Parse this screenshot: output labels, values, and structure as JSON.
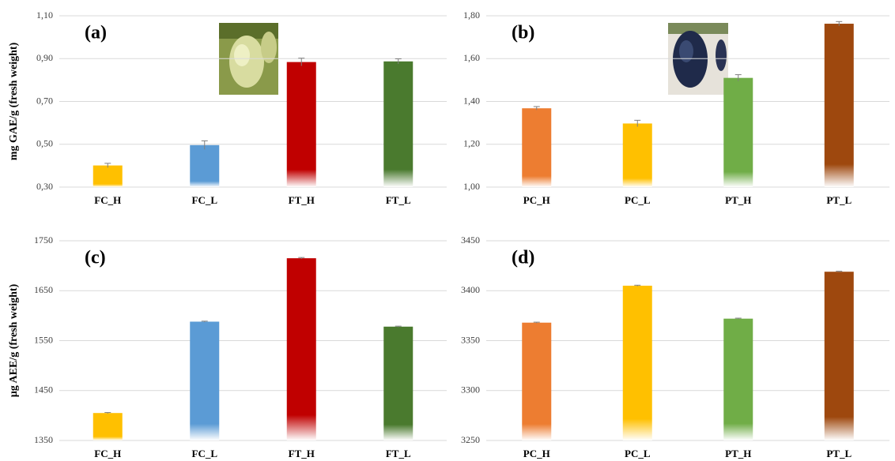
{
  "chart_data": [
    {
      "type": "bar",
      "title": "(a)",
      "y_label": "mg GAE/g (fresh weight)",
      "categories": [
        "FC_H",
        "FC_L",
        "FT_H",
        "FT_L"
      ],
      "values": [
        0.401,
        0.496,
        0.884,
        0.887
      ],
      "errors": [
        0.01,
        0.02,
        0.018,
        0.012
      ],
      "colors": [
        "#ffc000",
        "#5b9bd5",
        "#c00000",
        "#4a7a2e"
      ],
      "ylim": [
        0.3,
        1.1
      ],
      "yticks": [
        {
          "value": 0.3,
          "label": "0,30"
        },
        {
          "value": 0.5,
          "label": "0,50"
        },
        {
          "value": 0.7,
          "label": "0,70"
        },
        {
          "value": 0.9,
          "label": "0,90"
        },
        {
          "value": 1.1,
          "label": "1,10"
        }
      ],
      "grid": true
    },
    {
      "type": "bar",
      "title": "(b)",
      "categories": [
        "PC_H",
        "PC_L",
        "PT_H",
        "PT_L"
      ],
      "values": [
        1.368,
        1.297,
        1.51,
        1.763
      ],
      "errors": [
        0.008,
        0.015,
        0.015,
        0.01
      ],
      "colors": [
        "#ed7d31",
        "#ffc000",
        "#70ad47",
        "#9e480e"
      ],
      "ylim": [
        1.0,
        1.8
      ],
      "yticks": [
        {
          "value": 1.0,
          "label": "1,00"
        },
        {
          "value": 1.2,
          "label": "1,20"
        },
        {
          "value": 1.4,
          "label": "1,40"
        },
        {
          "value": 1.6,
          "label": "1,60"
        },
        {
          "value": 1.8,
          "label": "1,80"
        }
      ],
      "grid": true
    },
    {
      "type": "bar",
      "title": "(c)",
      "y_label": "µg AEE/g (fresh weight)",
      "categories": [
        "FC_H",
        "FC_L",
        "FT_H",
        "FT_L"
      ],
      "values": [
        1405,
        1588,
        1715,
        1578
      ],
      "errors": [
        1,
        1,
        1.5,
        1
      ],
      "colors": [
        "#ffc000",
        "#5b9bd5",
        "#c00000",
        "#4a7a2e"
      ],
      "ylim": [
        1350,
        1750
      ],
      "yticks": [
        1350,
        1450,
        1550,
        1650,
        1750
      ],
      "grid": true
    },
    {
      "type": "bar",
      "title": "(d)",
      "categories": [
        "PC_H",
        "PC_L",
        "PT_H",
        "PT_L"
      ],
      "values": [
        3368,
        3405,
        3372,
        3419
      ],
      "errors": [
        0.5,
        0.5,
        0.5,
        0.5
      ],
      "colors": [
        "#ed7d31",
        "#ffc000",
        "#70ad47",
        "#9e480e"
      ],
      "ylim": [
        3250,
        3450
      ],
      "yticks": [
        3250,
        3300,
        3350,
        3400,
        3450
      ],
      "grid": true
    }
  ]
}
